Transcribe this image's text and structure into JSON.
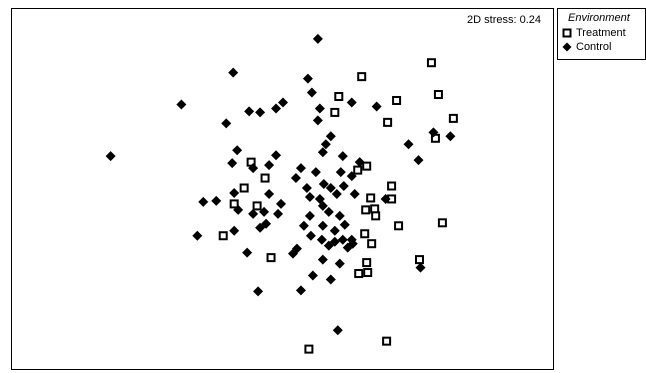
{
  "chart_data": {
    "type": "scatter",
    "stress_text": "2D stress: 0.24",
    "xlim": [
      0,
      543
    ],
    "ylim": [
      0,
      362
    ],
    "grid": false,
    "legend_position": "right",
    "legend": {
      "title": "Environment",
      "entries": [
        "Treatment",
        "Control"
      ]
    },
    "series": [
      {
        "name": "Treatment",
        "marker": "open-square",
        "color": "#000000",
        "points": [
          [
            421,
            54
          ],
          [
            351,
            68
          ],
          [
            428,
            86
          ],
          [
            328,
            88
          ],
          [
            386,
            92
          ],
          [
            324,
            104
          ],
          [
            443,
            110
          ],
          [
            377,
            114
          ],
          [
            425,
            130
          ],
          [
            240,
            154
          ],
          [
            356,
            158
          ],
          [
            347,
            162
          ],
          [
            254,
            170
          ],
          [
            381,
            178
          ],
          [
            233,
            180
          ],
          [
            360,
            190
          ],
          [
            381,
            191
          ],
          [
            223,
            196
          ],
          [
            246,
            198
          ],
          [
            355,
            202
          ],
          [
            364,
            201
          ],
          [
            365,
            208
          ],
          [
            388,
            218
          ],
          [
            432,
            215
          ],
          [
            354,
            226
          ],
          [
            212,
            228
          ],
          [
            361,
            236
          ],
          [
            260,
            250
          ],
          [
            409,
            252
          ],
          [
            356,
            255
          ],
          [
            348,
            266
          ],
          [
            357,
            265
          ],
          [
            298,
            342
          ],
          [
            376,
            334
          ]
        ]
      },
      {
        "name": "Control",
        "marker": "filled-diamond",
        "color": "#000000",
        "points": [
          [
            307,
            30
          ],
          [
            222,
            64
          ],
          [
            297,
            70
          ],
          [
            301,
            84
          ],
          [
            170,
            96
          ],
          [
            238,
            103
          ],
          [
            249,
            104
          ],
          [
            265,
            100
          ],
          [
            272,
            94
          ],
          [
            309,
            100
          ],
          [
            341,
            94
          ],
          [
            366,
            98
          ],
          [
            215,
            115
          ],
          [
            307,
            112
          ],
          [
            320,
            128
          ],
          [
            315,
            136
          ],
          [
            312,
            144
          ],
          [
            398,
            136
          ],
          [
            423,
            124
          ],
          [
            440,
            128
          ],
          [
            99,
            148
          ],
          [
            226,
            142
          ],
          [
            221,
            155
          ],
          [
            265,
            147
          ],
          [
            242,
            160
          ],
          [
            408,
            152
          ],
          [
            258,
            157
          ],
          [
            290,
            160
          ],
          [
            305,
            164
          ],
          [
            332,
            148
          ],
          [
            349,
            154
          ],
          [
            341,
            168
          ],
          [
            330,
            164
          ],
          [
            285,
            170
          ],
          [
            313,
            176
          ],
          [
            258,
            186
          ],
          [
            296,
            180
          ],
          [
            333,
            178
          ],
          [
            320,
            180
          ],
          [
            223,
            185
          ],
          [
            192,
            194
          ],
          [
            205,
            193
          ],
          [
            227,
            202
          ],
          [
            270,
            196
          ],
          [
            299,
            189
          ],
          [
            309,
            191
          ],
          [
            326,
            186
          ],
          [
            344,
            186
          ],
          [
            375,
            191
          ],
          [
            242,
            206
          ],
          [
            253,
            204
          ],
          [
            267,
            206
          ],
          [
            312,
            198
          ],
          [
            318,
            204
          ],
          [
            329,
            208
          ],
          [
            334,
            217
          ],
          [
            299,
            208
          ],
          [
            223,
            223
          ],
          [
            186,
            228
          ],
          [
            255,
            216
          ],
          [
            249,
            220
          ],
          [
            293,
            218
          ],
          [
            312,
            218
          ],
          [
            324,
            223
          ],
          [
            300,
            228
          ],
          [
            311,
            232
          ],
          [
            318,
            238
          ],
          [
            324,
            234
          ],
          [
            332,
            232
          ],
          [
            342,
            236
          ],
          [
            337,
            240
          ],
          [
            341,
            232
          ],
          [
            236,
            245
          ],
          [
            286,
            241
          ],
          [
            282,
            246
          ],
          [
            312,
            252
          ],
          [
            302,
            268
          ],
          [
            320,
            272
          ],
          [
            329,
            256
          ],
          [
            247,
            284
          ],
          [
            290,
            283
          ],
          [
            327,
            323
          ],
          [
            410,
            260
          ]
        ]
      }
    ]
  }
}
